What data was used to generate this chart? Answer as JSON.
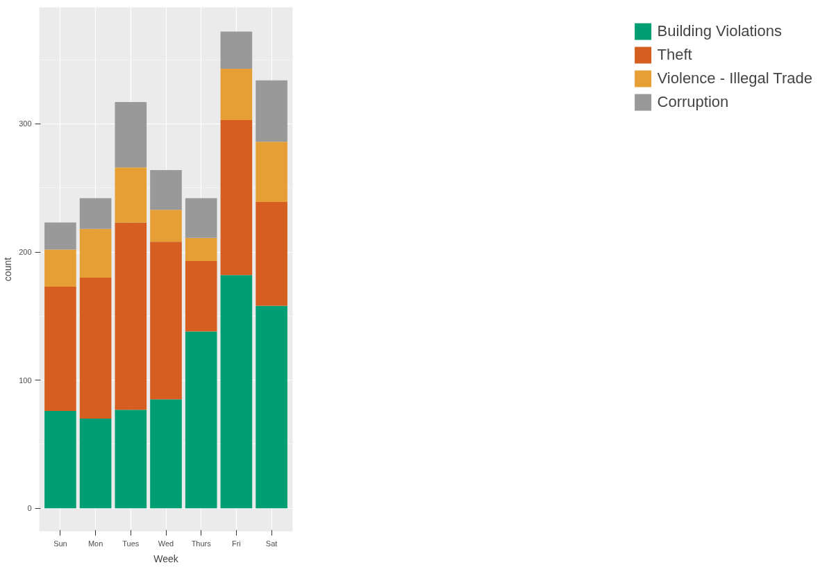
{
  "chart_data": {
    "type": "bar",
    "stacked": true,
    "xlabel": "Week",
    "ylabel": "count",
    "categories": [
      "Sun",
      "Mon",
      "Tues",
      "Wed",
      "Thurs",
      "Fri",
      "Sat"
    ],
    "series": [
      {
        "name": "Building Violations",
        "color": "#009e73",
        "values": [
          76,
          70,
          77,
          85,
          138,
          182,
          158
        ]
      },
      {
        "name": "Theft",
        "color": "#d55e20",
        "values": [
          97,
          110,
          146,
          123,
          55,
          121,
          81
        ]
      },
      {
        "name": "Violence - Illegal Trade",
        "color": "#e69f35",
        "values": [
          29,
          38,
          43,
          25,
          18,
          40,
          47
        ]
      },
      {
        "name": "Corruption",
        "color": "#999999",
        "values": [
          21,
          24,
          51,
          31,
          31,
          29,
          48
        ]
      }
    ],
    "ylim": [
      -18,
      391
    ],
    "yticks": [
      0,
      100,
      200,
      300
    ],
    "grid": true,
    "legend": "right"
  }
}
